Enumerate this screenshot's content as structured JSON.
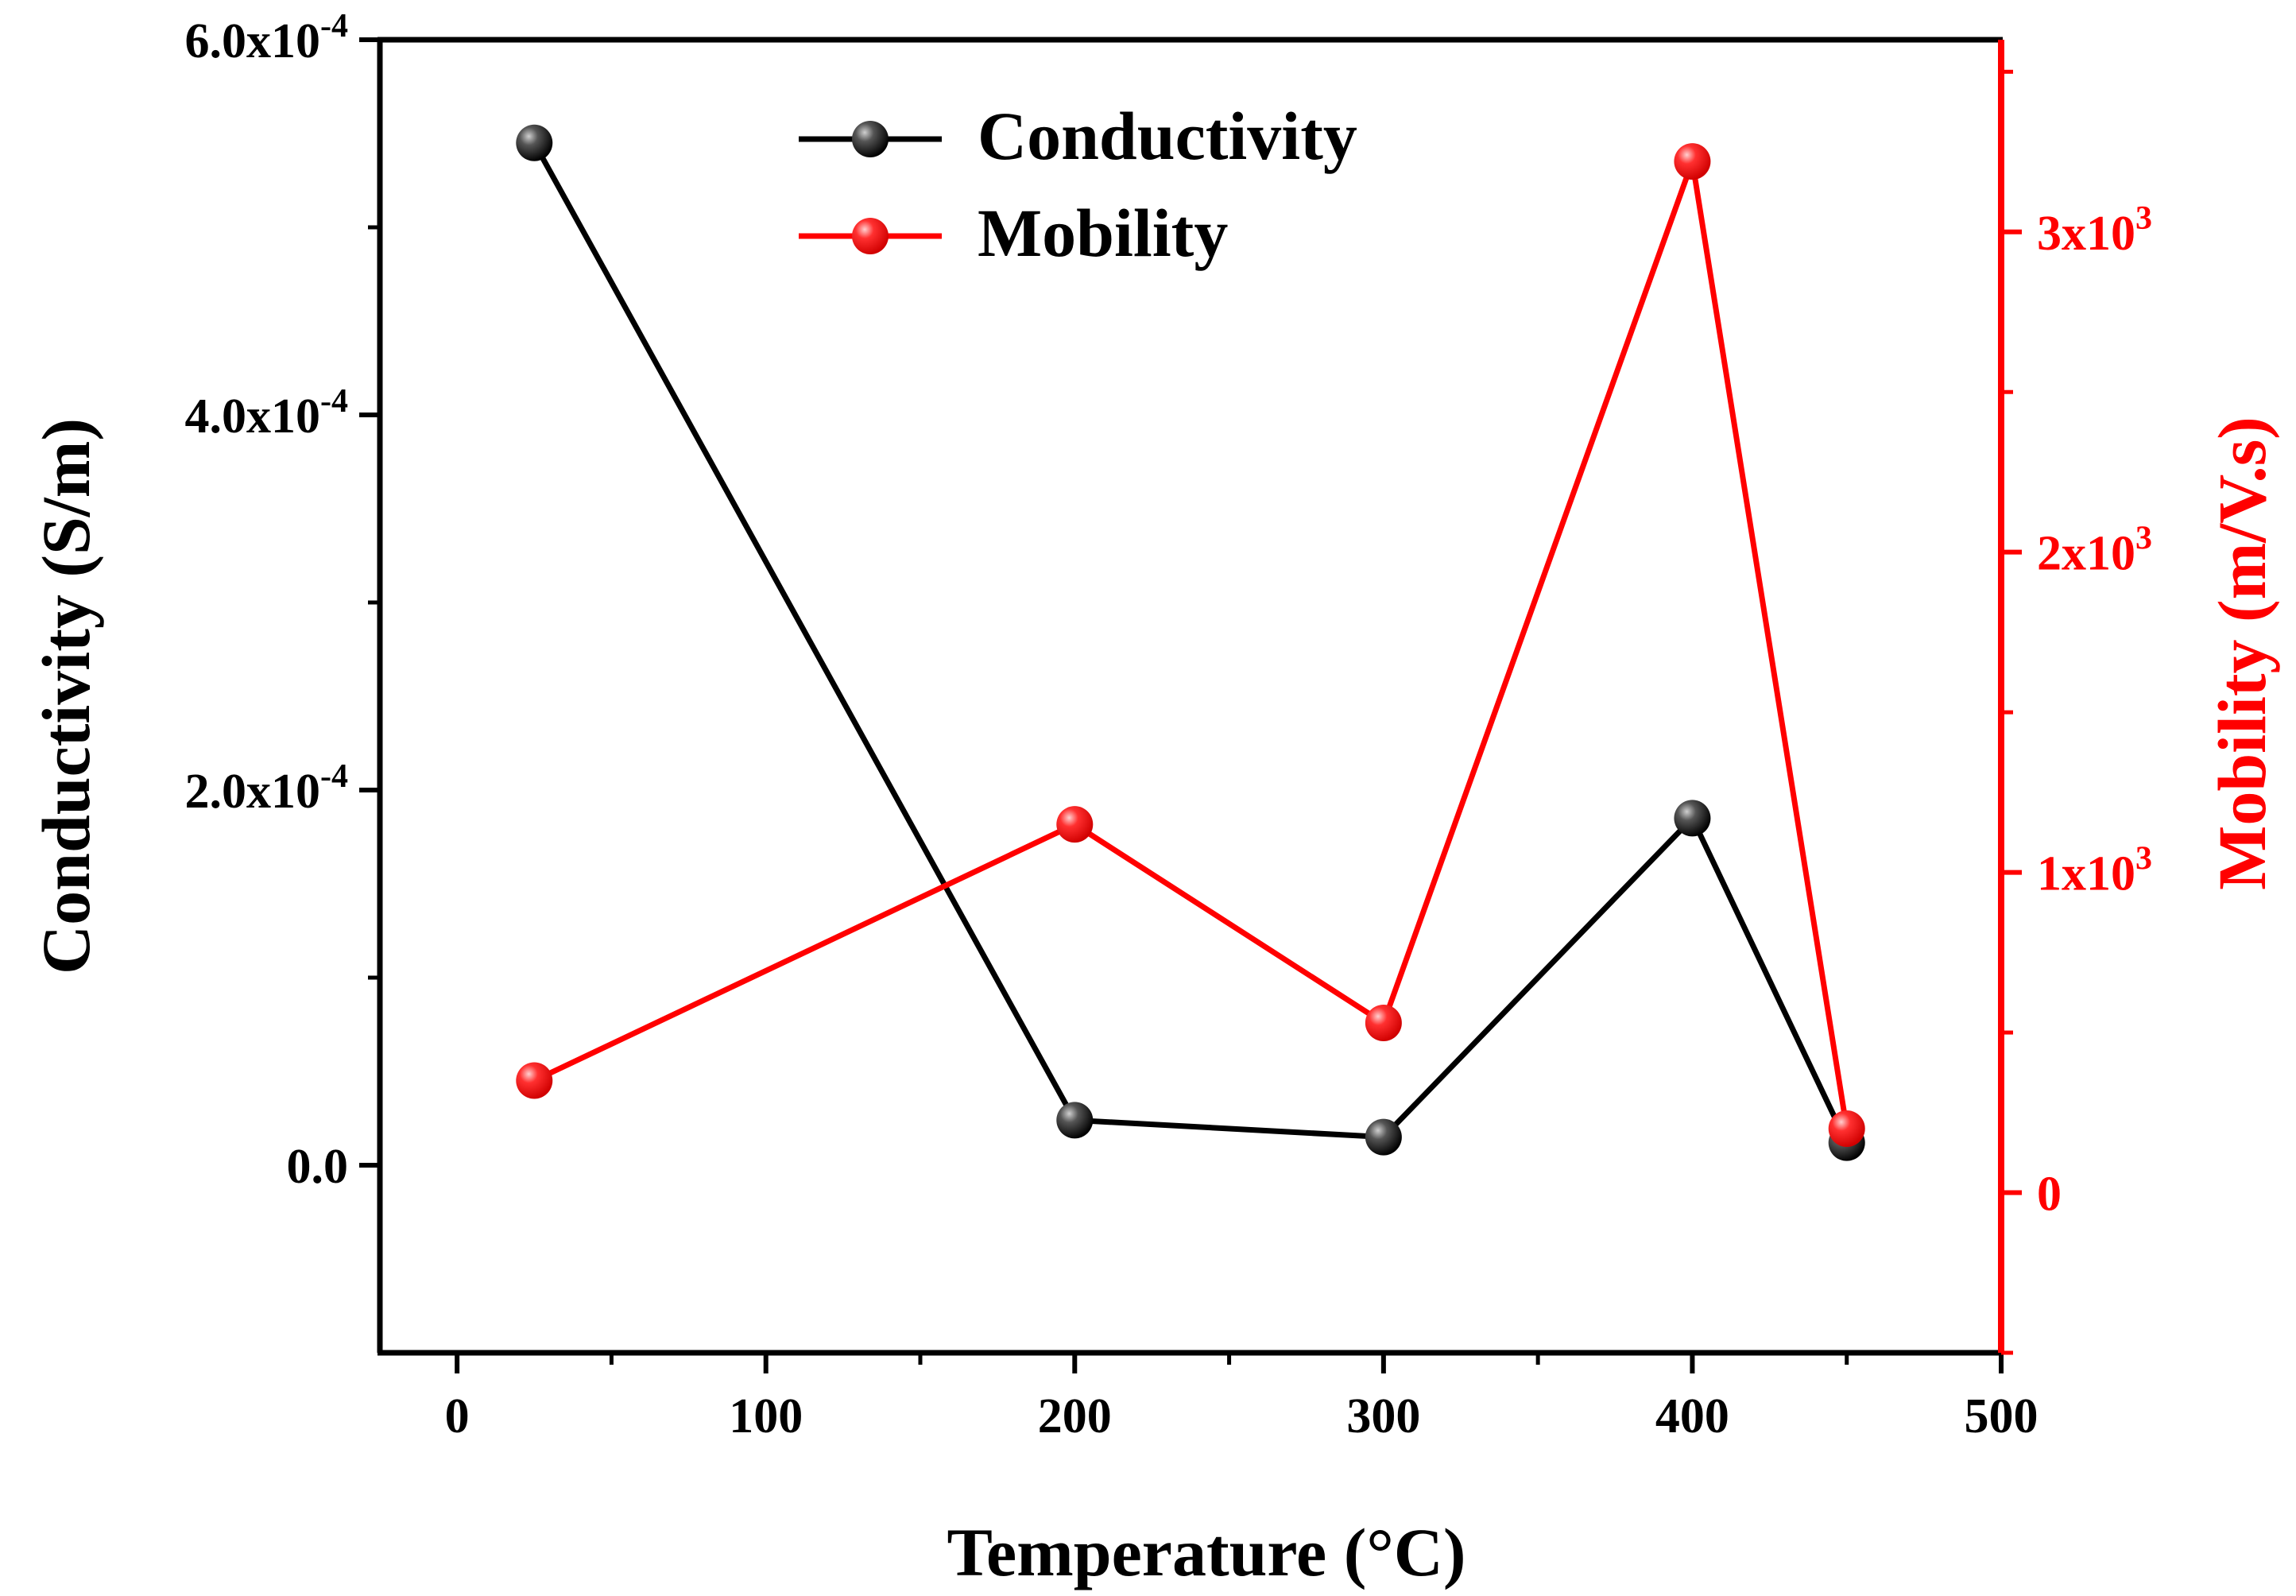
{
  "chart_data": {
    "type": "line",
    "x": [
      25,
      200,
      300,
      400,
      450
    ],
    "xlabel": "Temperature (°C)",
    "xlim": [
      -25,
      500
    ],
    "xticks": [
      0,
      100,
      200,
      300,
      400,
      500
    ],
    "xtick_labels": [
      "0",
      "100",
      "200",
      "300",
      "400",
      "500"
    ],
    "y_left": {
      "label": "Conductivity (S/m)",
      "lim": [
        -0.0001,
        0.0006
      ],
      "ticks": [
        0,
        0.0002,
        0.0004,
        0.0006
      ],
      "tick_labels": [
        {
          "mantissa": "0.0",
          "exp": ""
        },
        {
          "mantissa": "2.0x10",
          "exp": "-4"
        },
        {
          "mantissa": "4.0x10",
          "exp": "-4"
        },
        {
          "mantissa": "6.0x10",
          "exp": "-4"
        }
      ]
    },
    "y_right": {
      "label": "Mobility (m/V.s)",
      "lim": [
        -500,
        3600
      ],
      "ticks": [
        0,
        1000,
        2000,
        3000
      ],
      "tick_labels": [
        {
          "mantissa": "0",
          "exp": ""
        },
        {
          "mantissa": "1x10",
          "exp": "3"
        },
        {
          "mantissa": "2x10",
          "exp": "3"
        },
        {
          "mantissa": "3x10",
          "exp": "3"
        }
      ]
    },
    "series": [
      {
        "name": "Conductivity",
        "axis": "left",
        "color": "#000000",
        "values": [
          0.000545,
          2.4e-05,
          1.5e-05,
          0.000185,
          1.2e-05
        ]
      },
      {
        "name": "Mobility",
        "axis": "right",
        "color": "#ff0000",
        "values": [
          350,
          1150,
          530,
          3220,
          200
        ]
      }
    ],
    "legend_position": "top-center",
    "grid": false
  }
}
